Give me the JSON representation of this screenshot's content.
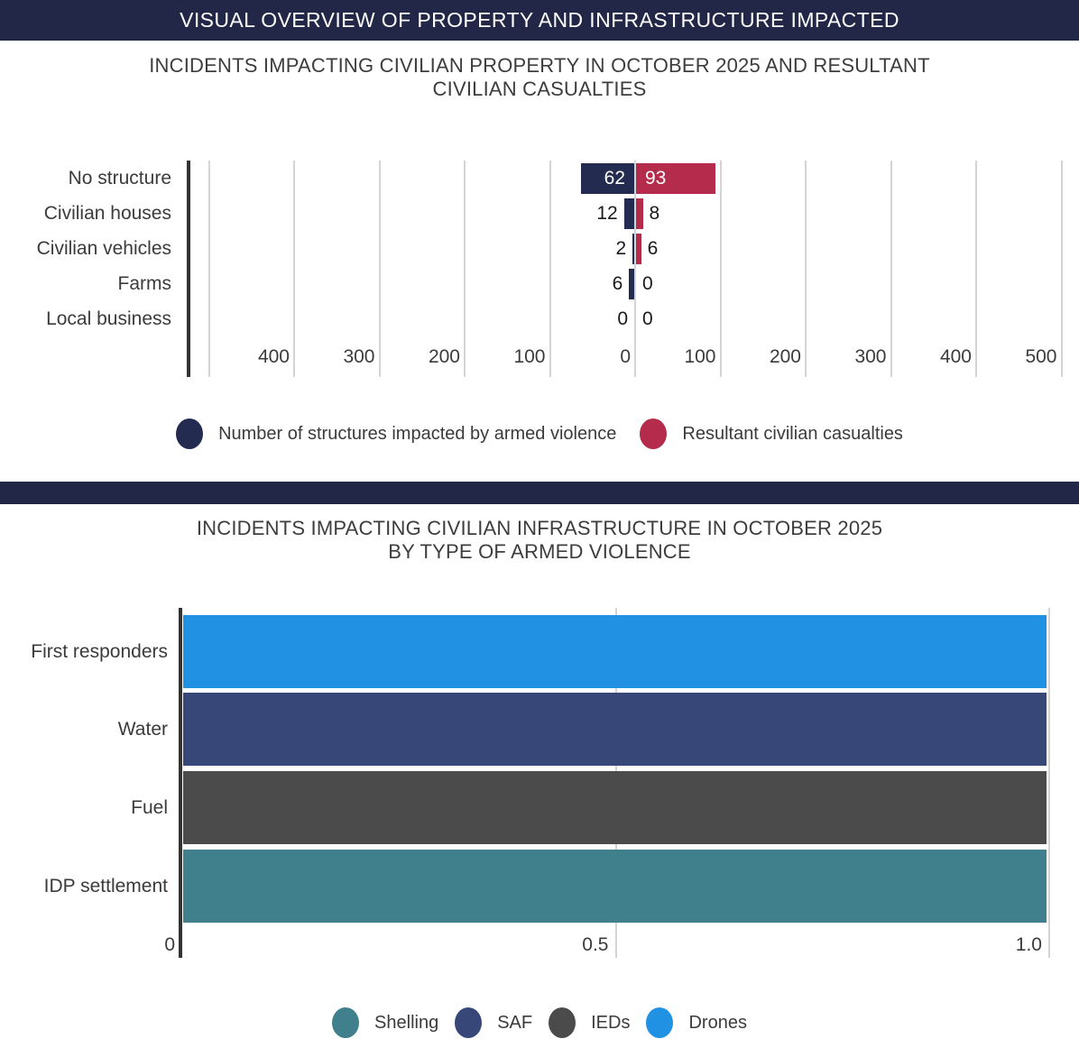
{
  "header": {
    "title": "VISUAL OVERVIEW OF PROPERTY AND INFRASTRUCTURE IMPACTED"
  },
  "colors": {
    "banner_navy": "#232747",
    "structures_navy": "#242b50",
    "casualties_crimson": "#b42b4b",
    "shelling_teal": "#3f808c",
    "saf_navy": "#374878",
    "ieds_gray": "#4b4b4b",
    "drones_blue": "#2191e4",
    "gridline": "#d4d4d4",
    "axis_line": "#333333"
  },
  "chart_data": [
    {
      "type": "bar",
      "variant": "diverging-horizontal",
      "title_lines": [
        "INCIDENTS IMPACTING CIVILIAN PROPERTY IN OCTOBER 2025 AND RESULTANT",
        "CIVILIAN CASUALTIES"
      ],
      "categories": [
        "No structure",
        "Civilian houses",
        "Civilian vehicles",
        "Farms",
        "Local business"
      ],
      "series": [
        {
          "name": "Number of structures impacted by armed violence",
          "side": "left",
          "color": "#242b50",
          "values": [
            62,
            12,
            2,
            6,
            0
          ]
        },
        {
          "name": "Resultant civilian casualties",
          "side": "right",
          "color": "#b42b4b",
          "values": [
            93,
            8,
            6,
            0,
            0
          ]
        }
      ],
      "x_tick_values": [
        -400,
        -300,
        -200,
        -100,
        0,
        100,
        200,
        300,
        400,
        500
      ],
      "x_tick_labels": [
        "400",
        "300",
        "200",
        "100",
        "0",
        "100",
        "200",
        "300",
        "400",
        "500"
      ],
      "xlim": [
        -500,
        520
      ],
      "grid": true,
      "legend_position": "bottom"
    },
    {
      "type": "bar",
      "variant": "horizontal",
      "title_lines": [
        "INCIDENTS IMPACTING CIVILIAN INFRASTRUCTURE IN OCTOBER 2025",
        "BY TYPE OF ARMED VIOLENCE"
      ],
      "categories": [
        "First responders",
        "Water",
        "Fuel",
        "IDP settlement"
      ],
      "values": [
        1.0,
        1.0,
        1.0,
        1.0
      ],
      "category_violence_type": [
        "Drones",
        "SAF",
        "IEDs",
        "Shelling"
      ],
      "legend": [
        {
          "label": "Shelling",
          "color": "#3f808c"
        },
        {
          "label": "SAF",
          "color": "#374878"
        },
        {
          "label": "IEDs",
          "color": "#4b4b4b"
        },
        {
          "label": "Drones",
          "color": "#2191e4"
        }
      ],
      "x_tick_values": [
        0,
        0.5,
        1.0
      ],
      "x_tick_labels": [
        "0",
        "0.5",
        "1.0"
      ],
      "xlim": [
        0,
        1.04
      ],
      "grid": true,
      "legend_position": "bottom"
    }
  ]
}
